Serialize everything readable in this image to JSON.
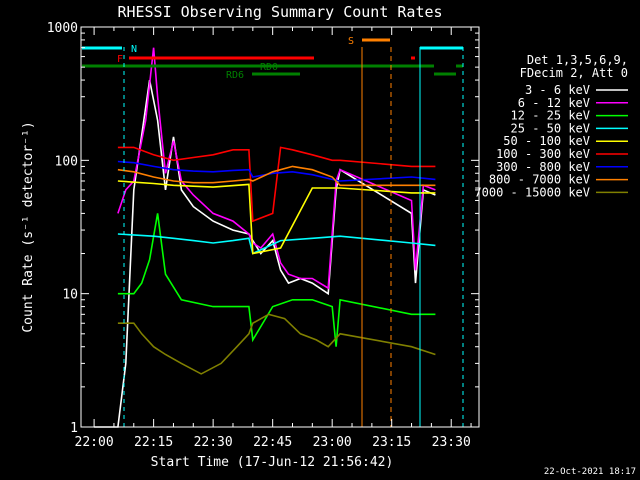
{
  "chart_data": {
    "type": "line",
    "title": "RHESSI Observing Summary Count Rates",
    "xlabel": "Start Time (17-Jun-12 21:56:42)",
    "ylabel": "Count Rate (s⁻¹ detector⁻¹)",
    "y_scale": "log",
    "ylim": [
      1,
      1000
    ],
    "xlim": [
      "21:56:42",
      "23:37:00"
    ],
    "x_ticks": [
      "22:00",
      "22:15",
      "22:30",
      "22:45",
      "23:00",
      "23:15",
      "23:30"
    ],
    "y_ticks": [
      "1",
      "10",
      "100",
      "1000"
    ],
    "legend_header": [
      "Det 1,3,5,6,9,",
      "FDecim 2, Att 0"
    ],
    "legend_placement": "right",
    "date_stamp": "22-Oct-2021 18:17",
    "flag_labels": {
      "N": "N",
      "F": "F",
      "S": "S",
      "RD0": "RD0",
      "RD6": "RD6"
    },
    "series": [
      {
        "name": "3 - 6 keV",
        "color": "#ffffff",
        "x": [
          "22:00",
          "22:06",
          "22:08",
          "22:10",
          "22:13",
          "22:14",
          "22:16",
          "22:18",
          "22:20",
          "22:22",
          "22:25",
          "22:30",
          "22:35",
          "22:39",
          "22:40",
          "22:42",
          "22:45",
          "22:47",
          "22:49",
          "22:52",
          "22:55",
          "22:59",
          "23:01",
          "23:02",
          "23:20",
          "23:21",
          "23:23",
          "23:26"
        ],
        "values": [
          1,
          1,
          3,
          60,
          250,
          400,
          200,
          60,
          150,
          60,
          45,
          35,
          30,
          28,
          25,
          20,
          25,
          15,
          12,
          13,
          12,
          10,
          60,
          85,
          40,
          12,
          60,
          55
        ]
      },
      {
        "name": "6 - 12 keV",
        "color": "#ff00ff",
        "x": [
          "22:06",
          "22:08",
          "22:10",
          "22:13",
          "22:15",
          "22:16",
          "22:18",
          "22:20",
          "22:22",
          "22:25",
          "22:30",
          "22:35",
          "22:39",
          "22:40",
          "22:42",
          "22:45",
          "22:47",
          "22:49",
          "22:52",
          "22:55",
          "22:59",
          "23:01",
          "23:02",
          "23:20",
          "23:21",
          "23:23",
          "23:26"
        ],
        "values": [
          40,
          60,
          70,
          200,
          700,
          300,
          80,
          140,
          70,
          55,
          40,
          35,
          28,
          24,
          22,
          28,
          17,
          14,
          13,
          13,
          11,
          70,
          85,
          50,
          15,
          65,
          60
        ]
      },
      {
        "name": "12 - 25 keV",
        "color": "#00ff00",
        "x": [
          "22:06",
          "22:10",
          "22:12",
          "22:14",
          "22:16",
          "22:18",
          "22:22",
          "22:30",
          "22:39",
          "22:40",
          "22:45",
          "22:50",
          "22:55",
          "23:00",
          "23:01",
          "23:02",
          "23:20",
          "23:26"
        ],
        "values": [
          10,
          10,
          12,
          18,
          40,
          14,
          9,
          8,
          8,
          4.5,
          8,
          9,
          9,
          8,
          4,
          9,
          7,
          7
        ]
      },
      {
        "name": "25 - 50 keV",
        "color": "#00ffff",
        "x": [
          "22:06",
          "22:15",
          "22:20",
          "22:25",
          "22:30",
          "22:35",
          "22:39",
          "22:40",
          "22:47",
          "22:55",
          "23:02",
          "23:20",
          "23:26"
        ],
        "values": [
          28,
          27,
          26,
          25,
          24,
          25,
          26,
          20,
          25,
          26,
          27,
          24,
          23
        ]
      },
      {
        "name": "50 - 100 keV",
        "color": "#ffff00",
        "x": [
          "22:06",
          "22:15",
          "22:20",
          "22:30",
          "22:39",
          "22:40",
          "22:47",
          "22:55",
          "23:02",
          "23:20",
          "23:26"
        ],
        "values": [
          70,
          67,
          65,
          63,
          66,
          20,
          22,
          62,
          62,
          57,
          57
        ]
      },
      {
        "name": "100 - 300 keV",
        "color": "#ff0000",
        "x": [
          "22:06",
          "22:10",
          "22:15",
          "22:20",
          "22:25",
          "22:30",
          "22:35",
          "22:39",
          "22:40",
          "22:45",
          "22:47",
          "22:50",
          "22:55",
          "23:00",
          "23:02",
          "23:20",
          "23:26"
        ],
        "values": [
          125,
          125,
          110,
          100,
          105,
          110,
          120,
          120,
          35,
          40,
          125,
          120,
          110,
          100,
          100,
          90,
          90
        ]
      },
      {
        "name": "300 - 800 keV",
        "color": "#0000ff",
        "x": [
          "22:06",
          "22:10",
          "22:15",
          "22:20",
          "22:25",
          "22:30",
          "22:35",
          "22:39",
          "22:40",
          "22:45",
          "22:50",
          "22:55",
          "23:00",
          "23:02",
          "23:20",
          "23:26"
        ],
        "values": [
          98,
          96,
          90,
          85,
          83,
          82,
          84,
          85,
          75,
          80,
          82,
          78,
          72,
          70,
          75,
          72
        ]
      },
      {
        "name": "800 - 7000 keV",
        "color": "#ff8000",
        "x": [
          "22:06",
          "22:10",
          "22:15",
          "22:20",
          "22:25",
          "22:30",
          "22:35",
          "22:39",
          "22:40",
          "22:45",
          "22:50",
          "22:55",
          "23:00",
          "23:02",
          "23:20",
          "23:26"
        ],
        "values": [
          85,
          82,
          75,
          70,
          68,
          68,
          70,
          72,
          70,
          82,
          90,
          85,
          75,
          65,
          65,
          65
        ]
      },
      {
        "name": "7000 - 15000 keV",
        "color": "#808000",
        "x": [
          "22:06",
          "22:10",
          "22:12",
          "22:15",
          "22:18",
          "22:22",
          "22:27",
          "22:32",
          "22:36",
          "22:39",
          "22:40",
          "22:44",
          "22:48",
          "22:52",
          "22:56",
          "22:59",
          "23:02",
          "23:20",
          "23:26"
        ],
        "values": [
          6,
          6,
          5,
          4,
          3.5,
          3,
          2.5,
          3,
          4,
          5,
          6,
          7,
          6.5,
          5,
          4.5,
          4,
          5,
          4,
          3.5
        ]
      }
    ]
  }
}
